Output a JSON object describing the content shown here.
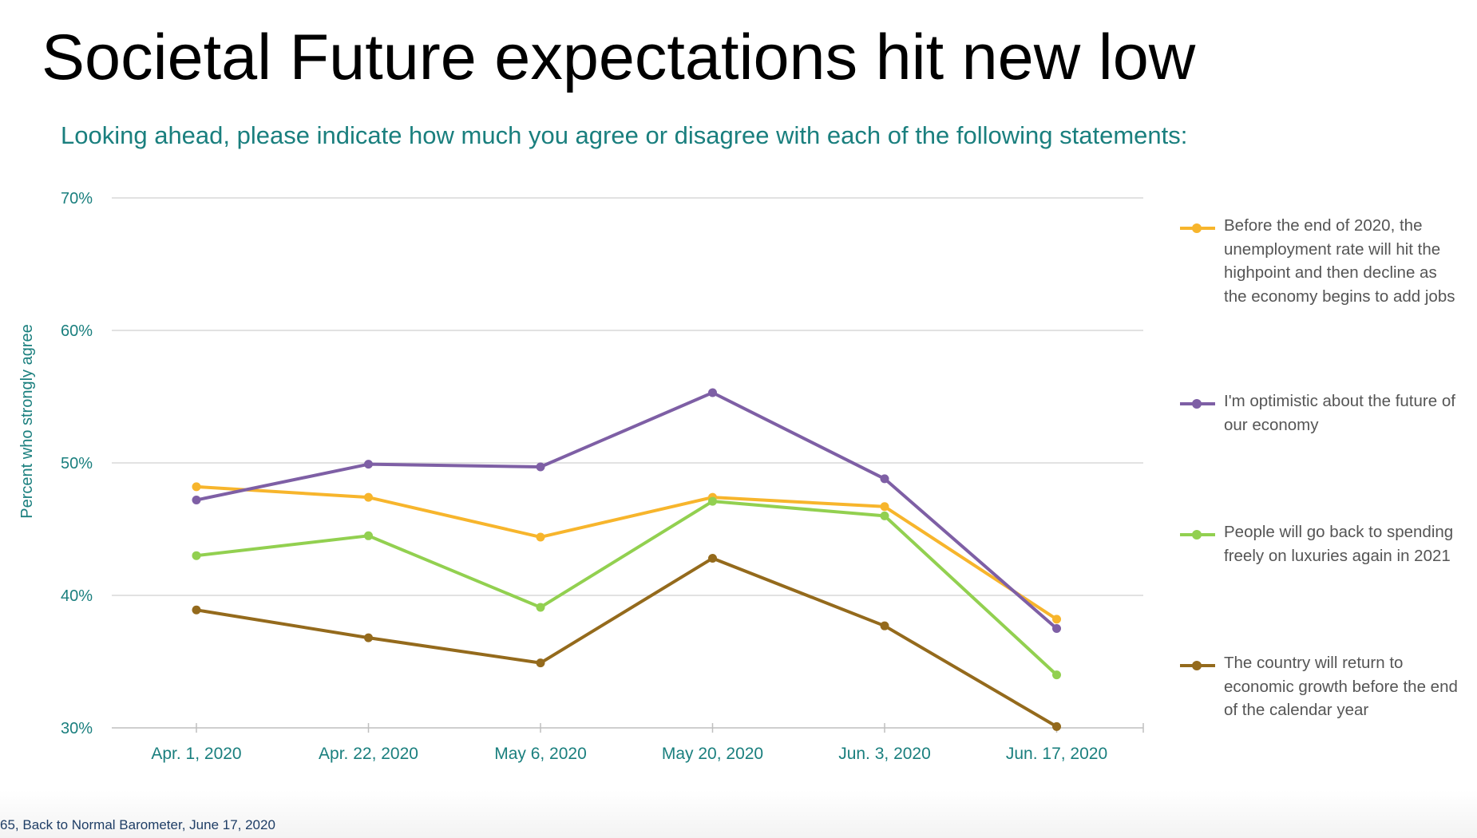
{
  "slide": {
    "title": "Societal Future expectations hit new low",
    "subtitle": "Looking ahead, please indicate how much you agree or disagree with each of the following statements:",
    "footer": "65, Back to Normal Barometer, June 17, 2020"
  },
  "chart_data": {
    "type": "line",
    "title": "",
    "xlabel": "",
    "ylabel": "Percent who strongly agree",
    "categories": [
      "Apr. 1, 2020",
      "Apr. 22, 2020",
      "May 6, 2020",
      "May 20, 2020",
      "Jun. 3, 2020",
      "Jun. 17, 2020"
    ],
    "ylim": [
      30,
      70
    ],
    "yticks": [
      30,
      40,
      50,
      60,
      70
    ],
    "ytick_labels": [
      "30%",
      "40%",
      "50%",
      "60%",
      "70%"
    ],
    "grid": true,
    "legend_position": "right",
    "series": [
      {
        "name": "Before the end of 2020, the unemployment rate will hit the highpoint and then decline as the economy begins to add jobs",
        "color": "#f7b52c",
        "values": [
          48.2,
          47.4,
          44.4,
          47.4,
          46.7,
          38.2
        ]
      },
      {
        "name": "I'm optimistic about the future of our economy",
        "color": "#7e5fa5",
        "values": [
          47.2,
          49.9,
          49.7,
          55.3,
          48.8,
          37.5
        ]
      },
      {
        "name": "People will go back to spending freely on luxuries again in 2021",
        "color": "#92d050",
        "values": [
          43.0,
          44.5,
          39.1,
          47.1,
          46.0,
          34.0
        ]
      },
      {
        "name": "The country will return to economic growth before the end of the calendar year",
        "color": "#946a1c",
        "values": [
          38.9,
          36.8,
          34.9,
          42.8,
          37.7,
          30.1
        ]
      }
    ]
  }
}
